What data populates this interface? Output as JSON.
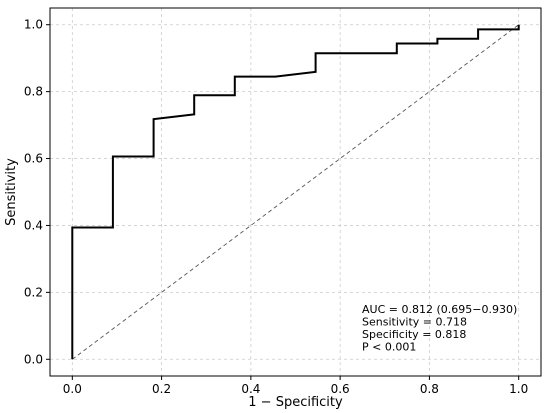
{
  "chart_data": {
    "type": "line",
    "title": "",
    "xlabel": "1 − Specificity",
    "ylabel": "Sensitivity",
    "xlim": [
      -0.05,
      1.05
    ],
    "ylim": [
      -0.05,
      1.05
    ],
    "x_ticks": [
      0.0,
      0.2,
      0.4,
      0.6,
      0.8,
      1.0
    ],
    "y_ticks": [
      0.0,
      0.2,
      0.4,
      0.6,
      0.8,
      1.0
    ],
    "x_tick_labels": [
      "0.0",
      "0.2",
      "0.4",
      "0.6",
      "0.8",
      "1.0"
    ],
    "y_tick_labels": [
      "0.0",
      "0.2",
      "0.4",
      "0.6",
      "0.8",
      "1.0"
    ],
    "grid": true,
    "series": [
      {
        "style": "solid",
        "color": "#000000",
        "x": [
          0.0,
          0.0,
          0.091,
          0.091,
          0.182,
          0.182,
          0.273,
          0.273,
          0.364,
          0.364,
          0.455,
          0.545,
          0.545,
          0.727,
          0.727,
          0.818,
          0.818,
          0.909,
          0.909,
          1.0,
          1.0
        ],
        "y": [
          0.0,
          0.394,
          0.394,
          0.606,
          0.606,
          0.718,
          0.732,
          0.789,
          0.789,
          0.845,
          0.845,
          0.859,
          0.915,
          0.915,
          0.944,
          0.944,
          0.958,
          0.958,
          0.986,
          0.986,
          1.0
        ]
      },
      {
        "style": "dashed",
        "color": "#555555",
        "x": [
          0.0,
          1.0
        ],
        "y": [
          0.0,
          1.0
        ]
      }
    ],
    "annotations": [
      "AUC = 0.812 (0.695−0.930)",
      "Sensitivity = 0.718",
      "Specificity = 0.818",
      "P < 0.001"
    ]
  }
}
